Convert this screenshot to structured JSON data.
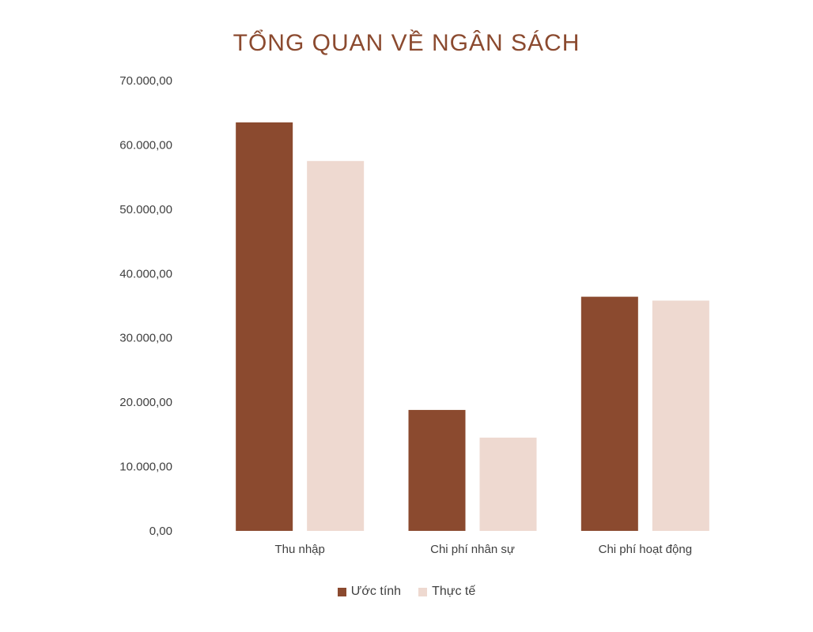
{
  "chart_data": {
    "type": "bar",
    "title": "TỔNG QUAN VỀ NGÂN SÁCH",
    "categories": [
      "Thu nhập",
      "Chi phí nhân sự",
      "Chi phí hoạt động"
    ],
    "series": [
      {
        "name": "Ước tính",
        "values": [
          63500,
          18800,
          36400
        ],
        "color": "#8B4A2F"
      },
      {
        "name": "Thực tế",
        "values": [
          57500,
          14500,
          35800
        ],
        "color": "#EED9D0"
      }
    ],
    "ylim": [
      0,
      70000
    ],
    "yticks": [
      "0,00",
      "10.000,00",
      "20.000,00",
      "30.000,00",
      "40.000,00",
      "50.000,00",
      "60.000,00",
      "70.000,00"
    ],
    "xlabel": "",
    "ylabel": "",
    "grid": false,
    "legend_position": "bottom",
    "title_color": "#8B4A2F"
  }
}
